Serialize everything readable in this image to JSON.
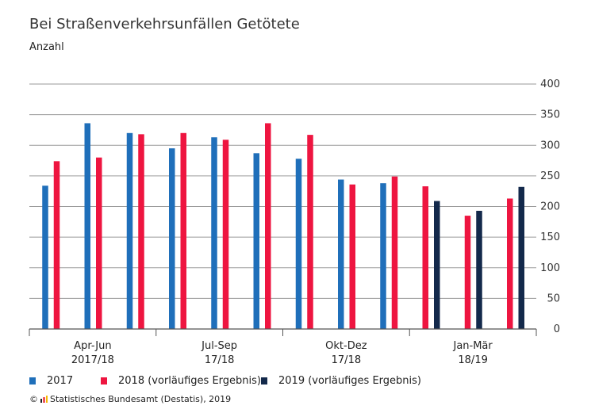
{
  "title": "Bei Straßenverkehrsunfällen Getötete",
  "subtitle": "Anzahl",
  "source": {
    "prefix": "©",
    "text": "Statistisches Bundesamt (Destatis), 2019"
  },
  "colors": {
    "2017": "#1f6fba",
    "2018": "#ee1540",
    "2019": "#13294b",
    "grid": "#9a9a9a",
    "axis": "#555555"
  },
  "legend": [
    {
      "label": "2017",
      "color": "#1f6fba"
    },
    {
      "label": "2018 (vorläufiges Ergebnis)",
      "color": "#ee1540"
    },
    {
      "label": "2019 (vorläufiges Ergebnis)",
      "color": "#13294b"
    }
  ],
  "chart_data": {
    "type": "bar",
    "title": "Bei Straßenverkehrsunfällen Getötete",
    "ylabel": "Anzahl",
    "ylim": [
      0,
      400
    ],
    "yticks": [
      0,
      50,
      100,
      150,
      200,
      250,
      300,
      350,
      400
    ],
    "y_axis_side": "right",
    "grid": true,
    "legend_position": "bottom",
    "groups": [
      {
        "line1": "Apr-Jun",
        "line2": "2017/18",
        "months": [
          {
            "2017": 234,
            "2018": 274
          },
          {
            "2017": 336,
            "2018": 280
          },
          {
            "2017": 320,
            "2018": 318
          }
        ]
      },
      {
        "line1": "Jul-Sep",
        "line2": "17/18",
        "months": [
          {
            "2017": 295,
            "2018": 320
          },
          {
            "2017": 313,
            "2018": 309
          },
          {
            "2017": 287,
            "2018": 336
          }
        ]
      },
      {
        "line1": "Okt-Dez",
        "line2": "17/18",
        "months": [
          {
            "2017": 278,
            "2018": 317
          },
          {
            "2017": 244,
            "2018": 236
          },
          {
            "2017": 238,
            "2018": 249
          }
        ]
      },
      {
        "line1": "Jan-Mär",
        "line2": "18/19",
        "months": [
          {
            "2018": 233,
            "2019": 209
          },
          {
            "2018": 185,
            "2019": 193
          },
          {
            "2018": 213,
            "2019": 232
          }
        ]
      }
    ]
  }
}
